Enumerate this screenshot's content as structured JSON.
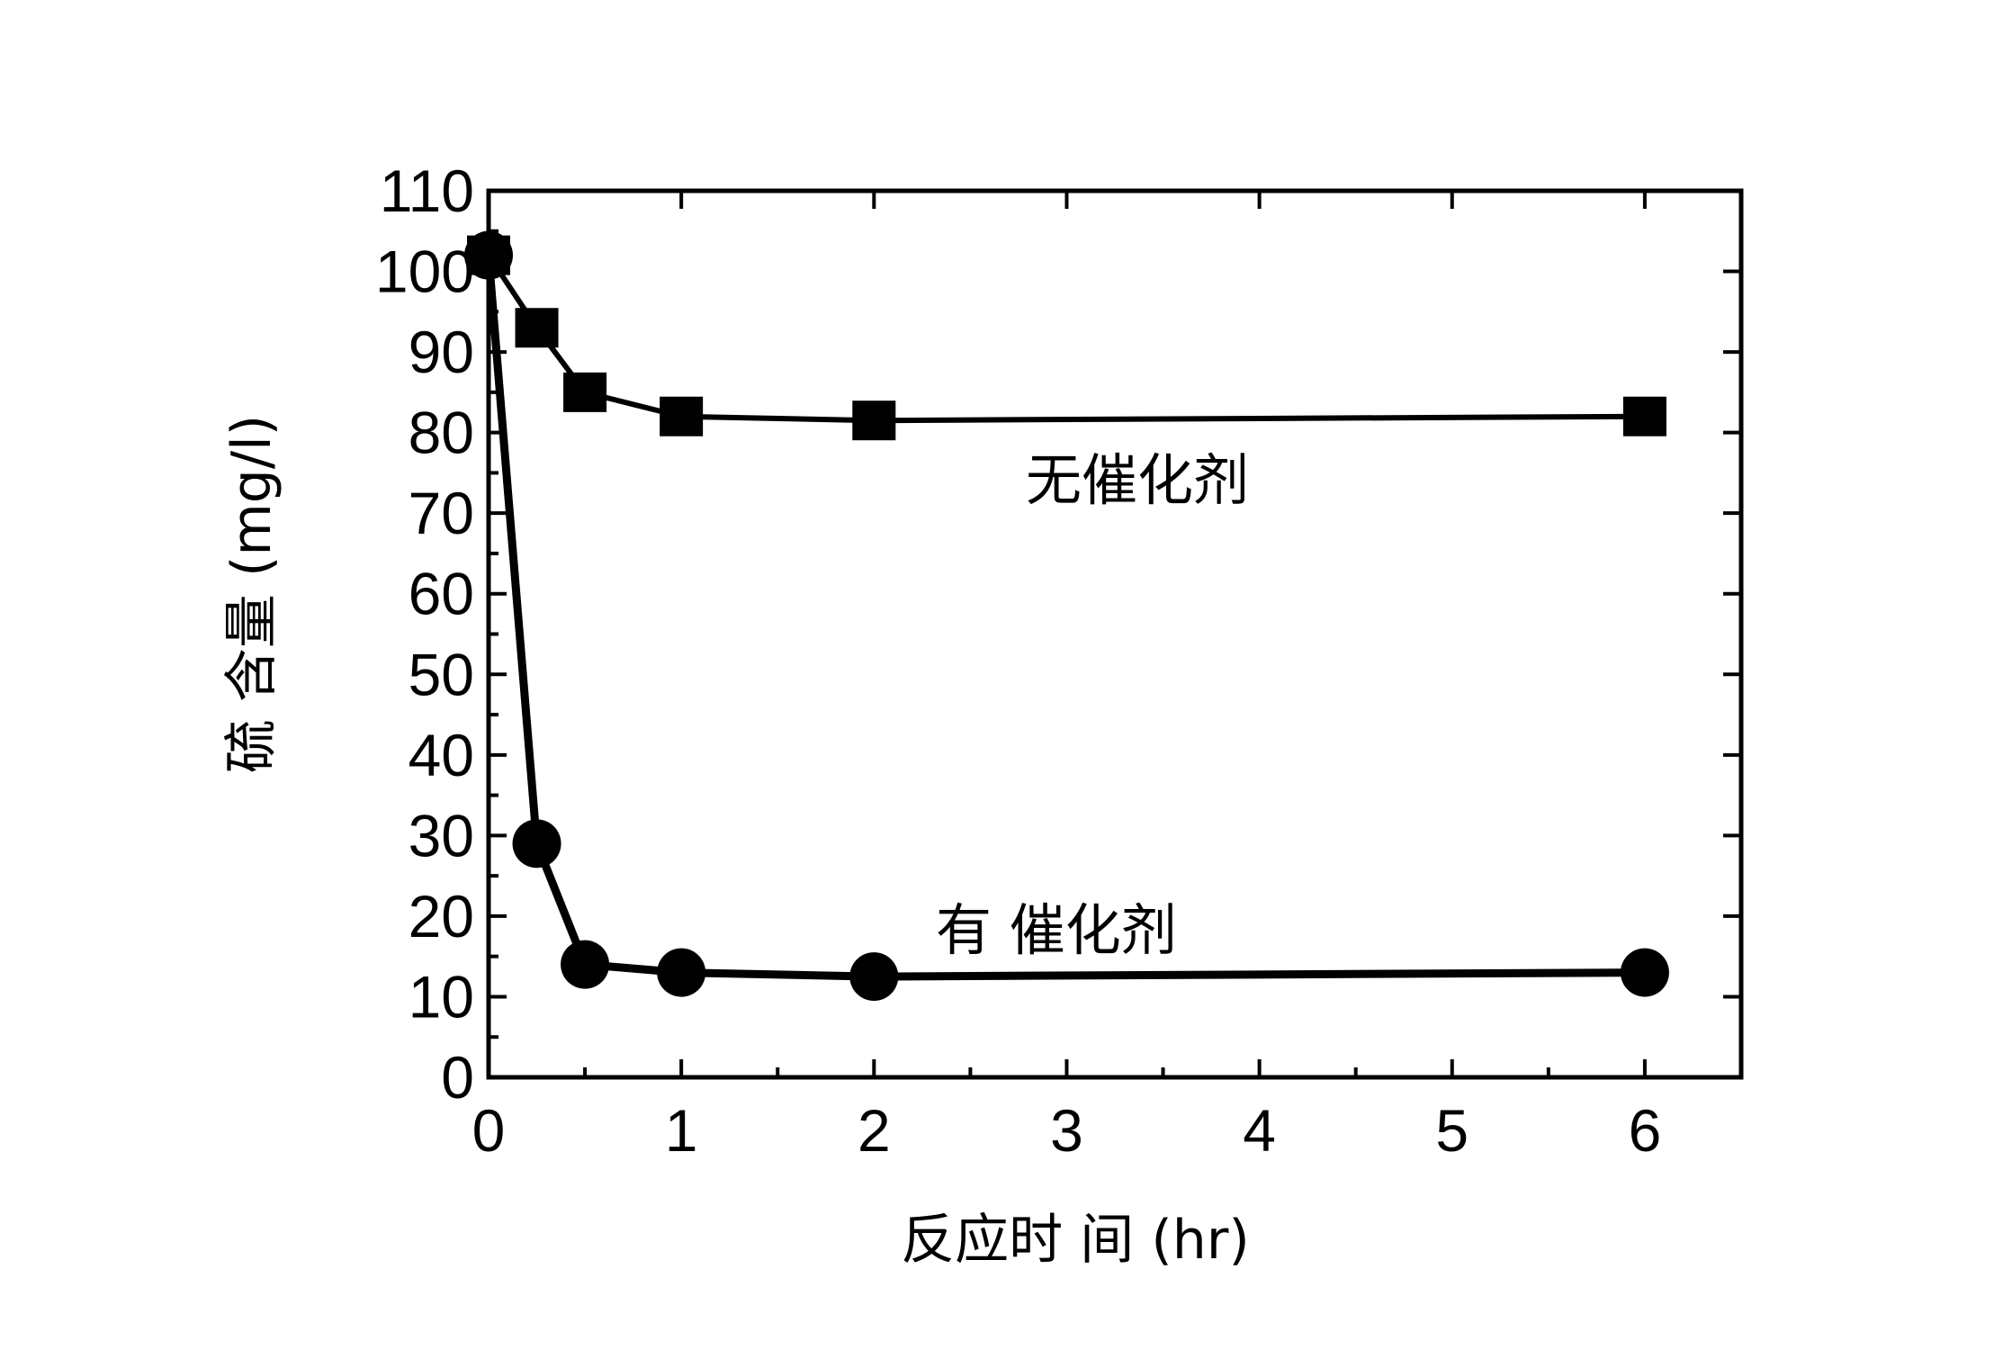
{
  "chart_data": {
    "type": "line",
    "xlabel": "反应时 间 (hr)",
    "ylabel": "硫 含量 (mg/l)",
    "xlim": [
      0,
      6.5
    ],
    "ylim": [
      0,
      110
    ],
    "xticks": [
      "0",
      "1",
      "2",
      "3",
      "4",
      "5",
      "6"
    ],
    "yticks": [
      "0",
      "10",
      "20",
      "30",
      "40",
      "50",
      "60",
      "70",
      "80",
      "90",
      "100",
      "110"
    ],
    "grid": false,
    "series": [
      {
        "name": "无催化剂",
        "marker": "square",
        "x": [
          0,
          0.25,
          0.5,
          1,
          2,
          6
        ],
        "y": [
          102,
          93,
          85,
          82,
          81.5,
          82
        ]
      },
      {
        "name": "有 催化剂",
        "marker": "circle",
        "x": [
          0,
          0.25,
          0.5,
          1,
          2,
          6
        ],
        "y": [
          102,
          29,
          14,
          13,
          12.5,
          13
        ]
      }
    ]
  }
}
